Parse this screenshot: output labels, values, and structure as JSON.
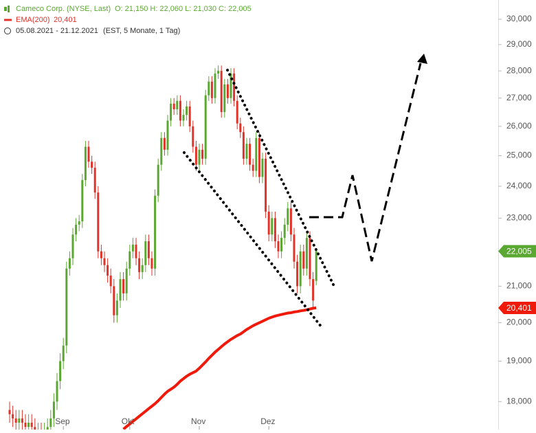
{
  "chart_data": {
    "type": "candlestick",
    "log_scale": true,
    "header": {
      "instrument": "Cameco Corp. (NYSE, Last)",
      "ohlc": "O: 21,150   H: 22,060   L: 21,030   C: 22,005",
      "indicator": "EMA(200)",
      "indicator_value": "20,401",
      "range": "05.08.2021 - 21.12.2021",
      "range_note": "(EST, 5 Monate, 1 Tag)"
    },
    "categories": [
      null,
      null,
      null,
      null,
      null,
      null,
      null,
      null,
      null,
      null,
      null,
      null,
      null,
      null,
      null,
      null,
      null,
      "Sep",
      null,
      null,
      null,
      null,
      null,
      null,
      null,
      null,
      null,
      null,
      null,
      null,
      null,
      null,
      null,
      null,
      null,
      null,
      null,
      null,
      "Okt",
      null,
      null,
      null,
      null,
      null,
      null,
      null,
      null,
      null,
      null,
      null,
      null,
      null,
      null,
      null,
      null,
      null,
      null,
      null,
      null,
      null,
      "Nov",
      null,
      null,
      null,
      null,
      null,
      null,
      null,
      null,
      null,
      null,
      null,
      null,
      null,
      null,
      null,
      null,
      null,
      null,
      null,
      null,
      null,
      "Dez",
      null,
      null,
      null,
      null,
      null,
      null,
      null,
      null,
      null,
      null,
      null,
      null,
      null,
      null,
      null
    ],
    "open": [
      17.8,
      17.7,
      17.6,
      17.5,
      17.6,
      17.5,
      17.4,
      17.5,
      17.4,
      17.3,
      17.3,
      17.2,
      17.3,
      17.4,
      17.6,
      18.0,
      18.5,
      19.0,
      19.4,
      21.5,
      21.8,
      22.5,
      22.8,
      22.9,
      24.2,
      25.3,
      24.8,
      24.6,
      23.8,
      22.0,
      21.8,
      21.6,
      21.3,
      21.0,
      20.2,
      20.6,
      21.2,
      20.8,
      21.5,
      22.0,
      22.2,
      21.8,
      21.4,
      21.6,
      22.3,
      21.8,
      21.5,
      23.7,
      24.7,
      25.6,
      25.2,
      26.2,
      26.8,
      26.6,
      26.9,
      26.2,
      26.4,
      26.7,
      26.0,
      25.3,
      24.7,
      25.2,
      24.9,
      27.1,
      27.6,
      27.0,
      27.9,
      28.0,
      26.5,
      27.5,
      27.0,
      27.9,
      26.9,
      26.1,
      25.8,
      24.9,
      25.4,
      24.7,
      24.5,
      25.6,
      24.3,
      24.9,
      23.2,
      22.5,
      23.0,
      22.3,
      22.0,
      22.4,
      22.8,
      23.3,
      22.5,
      21.7,
      21.0,
      22.0,
      21.5,
      22.4,
      21.2,
      21.15
    ],
    "high": [
      18.0,
      17.9,
      17.8,
      17.8,
      17.8,
      17.7,
      17.7,
      17.7,
      17.6,
      17.5,
      17.5,
      17.5,
      17.6,
      17.8,
      18.2,
      18.7,
      19.2,
      19.6,
      21.7,
      22.0,
      22.7,
      23.0,
      23.1,
      24.4,
      25.5,
      25.5,
      25.0,
      24.8,
      24.0,
      22.2,
      22.0,
      21.8,
      21.5,
      21.2,
      20.8,
      21.4,
      21.4,
      21.7,
      22.2,
      22.4,
      22.4,
      22.0,
      21.8,
      22.5,
      22.5,
      22.0,
      23.9,
      24.9,
      25.8,
      25.8,
      26.4,
      27.0,
      27.0,
      27.1,
      27.1,
      26.6,
      26.9,
      26.9,
      26.2,
      25.5,
      25.4,
      25.4,
      27.3,
      27.8,
      27.8,
      28.1,
      28.2,
      28.2,
      27.7,
      27.7,
      28.1,
      28.1,
      27.1,
      26.3,
      26.0,
      25.6,
      25.6,
      24.9,
      25.8,
      25.8,
      25.1,
      25.1,
      23.4,
      23.2,
      23.2,
      22.5,
      22.6,
      23.0,
      23.5,
      23.5,
      22.7,
      21.9,
      22.2,
      22.2,
      22.6,
      22.6,
      21.4,
      22.06
    ],
    "low": [
      17.5,
      17.4,
      17.3,
      17.3,
      17.3,
      17.2,
      17.2,
      17.2,
      17.1,
      17.1,
      17.0,
      17.0,
      17.1,
      17.2,
      17.4,
      17.8,
      18.3,
      18.8,
      19.2,
      21.3,
      21.6,
      22.3,
      22.6,
      22.7,
      24.0,
      24.6,
      24.4,
      23.6,
      21.8,
      21.6,
      21.4,
      21.1,
      20.8,
      20.0,
      20.0,
      20.4,
      20.6,
      20.6,
      21.3,
      21.8,
      21.6,
      21.2,
      21.2,
      21.4,
      21.6,
      21.3,
      21.3,
      23.5,
      24.5,
      25.0,
      25.0,
      26.0,
      26.4,
      26.4,
      26.0,
      26.0,
      26.2,
      25.8,
      25.1,
      24.5,
      24.5,
      24.7,
      24.7,
      26.9,
      26.8,
      26.8,
      27.7,
      26.3,
      26.3,
      26.8,
      26.8,
      26.7,
      25.9,
      25.6,
      24.7,
      24.7,
      24.5,
      24.3,
      24.3,
      24.1,
      24.1,
      23.0,
      22.3,
      22.3,
      22.1,
      21.8,
      21.8,
      22.2,
      22.6,
      22.3,
      21.5,
      20.8,
      20.8,
      21.3,
      21.3,
      21.0,
      20.4,
      21.03
    ],
    "close": [
      17.7,
      17.6,
      17.5,
      17.6,
      17.5,
      17.4,
      17.5,
      17.4,
      17.3,
      17.3,
      17.2,
      17.3,
      17.4,
      17.6,
      18.0,
      18.5,
      19.0,
      19.4,
      21.5,
      21.8,
      22.5,
      22.8,
      22.9,
      24.2,
      25.3,
      24.8,
      24.6,
      23.8,
      22.0,
      21.8,
      21.6,
      21.3,
      21.0,
      20.2,
      20.6,
      21.2,
      20.8,
      21.5,
      22.0,
      22.2,
      21.8,
      21.4,
      21.6,
      22.3,
      21.8,
      21.5,
      23.7,
      24.7,
      25.6,
      25.2,
      26.2,
      26.8,
      26.6,
      26.9,
      26.2,
      26.4,
      26.7,
      26.0,
      25.3,
      24.7,
      25.2,
      24.9,
      27.1,
      27.6,
      27.0,
      27.9,
      28.0,
      26.5,
      27.5,
      27.0,
      27.9,
      26.9,
      26.1,
      25.8,
      24.9,
      25.4,
      24.7,
      24.5,
      25.6,
      24.3,
      24.9,
      23.2,
      22.5,
      23.0,
      22.3,
      22.0,
      22.4,
      22.8,
      23.3,
      22.5,
      21.7,
      21.0,
      22.0,
      21.5,
      22.4,
      21.2,
      20.6,
      22.005
    ],
    "up_color": "#5aa832",
    "down_color": "#e0332a",
    "last_label": "22,005",
    "ema": {
      "name": "EMA(200)",
      "color": "#f01a0a",
      "label": "20,401",
      "values": [
        null,
        null,
        null,
        null,
        null,
        null,
        null,
        null,
        null,
        null,
        null,
        null,
        null,
        null,
        null,
        null,
        null,
        null,
        null,
        null,
        null,
        null,
        null,
        null,
        null,
        null,
        null,
        null,
        null,
        null,
        null,
        null,
        null,
        null,
        null,
        null,
        17.35,
        17.41,
        17.47,
        17.53,
        17.59,
        17.65,
        17.71,
        17.77,
        17.83,
        17.89,
        17.95,
        18.02,
        18.1,
        18.18,
        18.25,
        18.3,
        18.35,
        18.42,
        18.5,
        18.56,
        18.62,
        18.67,
        18.71,
        18.75,
        18.82,
        18.9,
        18.98,
        19.07,
        19.15,
        19.23,
        19.3,
        19.37,
        19.44,
        19.5,
        19.56,
        19.61,
        19.66,
        19.7,
        19.76,
        19.82,
        19.87,
        19.92,
        19.96,
        20.0,
        20.04,
        20.08,
        20.12,
        20.15,
        20.18,
        20.2,
        20.22,
        20.24,
        20.26,
        20.27,
        20.29,
        20.3,
        20.32,
        20.33,
        20.35,
        20.37,
        20.39,
        20.401
      ]
    },
    "ylim": [
      17.34,
      30.78
    ],
    "yticks": [
      {
        "value": 18,
        "label": "18,000"
      },
      {
        "value": 19,
        "label": "19,000"
      },
      {
        "value": 20,
        "label": "20,000"
      },
      {
        "value": 21,
        "label": "21,000"
      },
      {
        "value": 22,
        "label": "22,000"
      },
      {
        "value": 23,
        "label": "23,000"
      },
      {
        "value": 24,
        "label": "24,000"
      },
      {
        "value": 25,
        "label": "25,000"
      },
      {
        "value": 26,
        "label": "26,000"
      },
      {
        "value": 27,
        "label": "27,000"
      },
      {
        "value": 28,
        "label": "28,000"
      },
      {
        "value": 29,
        "label": "29,000"
      },
      {
        "value": 30,
        "label": "30,000"
      }
    ]
  }
}
